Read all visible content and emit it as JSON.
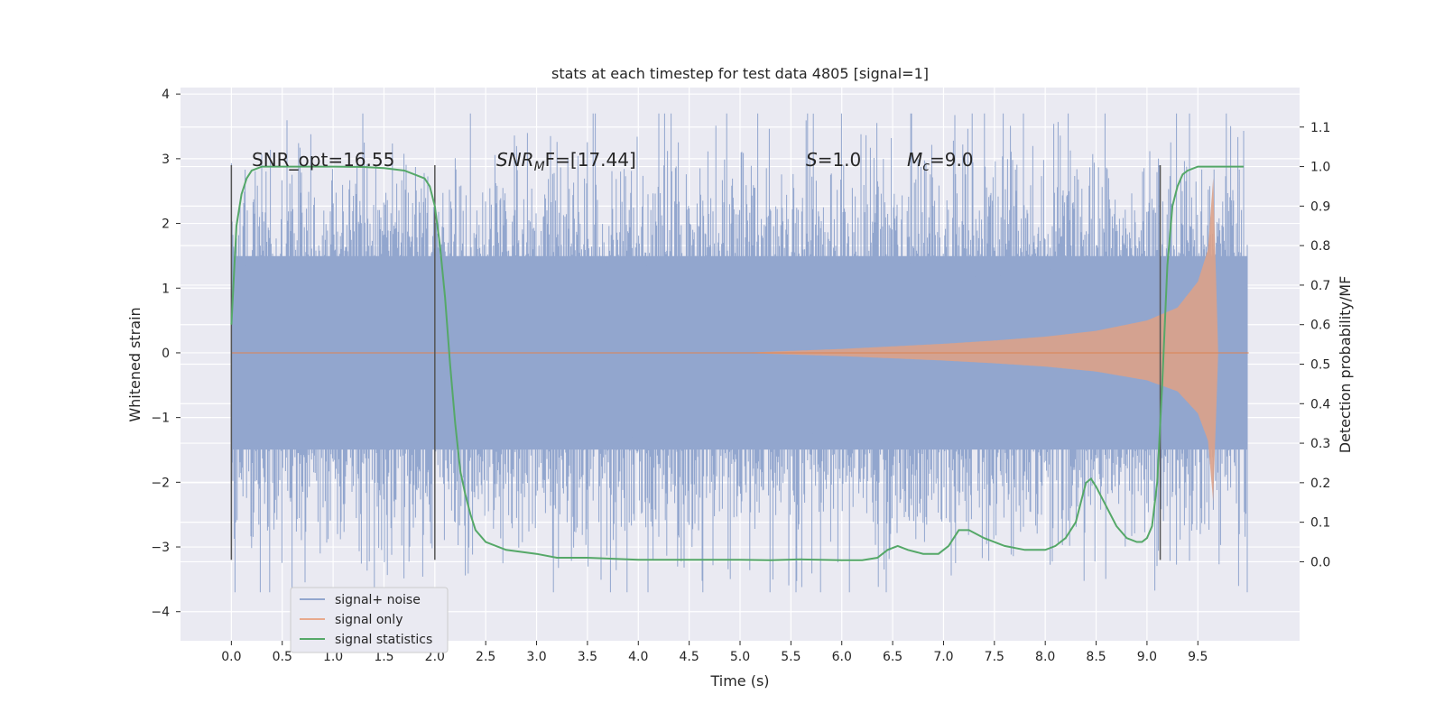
{
  "chart_data": {
    "type": "line",
    "title": "stats at each timestep for test data 4805 [signal=1]",
    "xlabel": "Time (s)",
    "ylabel_left": "Whitened strain",
    "ylabel_right": "Detection probability/MF",
    "xlim": [
      -0.5,
      10.5
    ],
    "ylim_left": [
      -4.45,
      4.1
    ],
    "ylim_right": [
      -0.2,
      1.2
    ],
    "x_ticks": [
      "0.0",
      "0.5",
      "1.0",
      "1.5",
      "2.0",
      "2.5",
      "3.0",
      "3.5",
      "4.0",
      "4.5",
      "5.0",
      "5.5",
      "6.0",
      "6.5",
      "7.0",
      "7.5",
      "8.0",
      "8.5",
      "9.0",
      "9.5"
    ],
    "y_ticks_left": [
      "4",
      "3",
      "2",
      "1",
      "0",
      "−1",
      "−2",
      "−3",
      "−4"
    ],
    "y_ticks_right": [
      "1.1",
      "1.0",
      "0.9",
      "0.8",
      "0.7",
      "0.6",
      "0.5",
      "0.4",
      "0.3",
      "0.2",
      "0.1",
      "0.0"
    ],
    "grid": true,
    "legend_position": "lower-left",
    "vertical_lines_x": [
      0.0,
      2.0,
      9.13
    ],
    "vertical_lines_range": [
      -3.2,
      2.9
    ],
    "annotations": {
      "snr_opt": "SNR_opt=16.55",
      "snr_mf_label": "SNR",
      "snr_mf_sub": "M",
      "snr_mf_rest": "F=[17.44]",
      "s_label": "S",
      "s_rest": "=1.0",
      "mc_label": "M",
      "mc_sub": "c",
      "mc_rest": "=9.0"
    },
    "series": [
      {
        "name": "signal+ noise",
        "color": "#92a6ce",
        "axis": "left",
        "description": "noise-dominated whitened strain, roughly within −2.5 to 2.5 with spikes to about ±3.7",
        "x_range": [
          0.0,
          9.99
        ],
        "envelope_typical": 2.3,
        "envelope_peak": 3.7
      },
      {
        "name": "signal only",
        "color": "#dd8452",
        "axis": "left",
        "description": "chirp growing in amplitude, peaking near t=9.65",
        "x": [
          0.0,
          5.0,
          5.5,
          6.0,
          6.5,
          7.0,
          7.5,
          8.0,
          8.5,
          9.0,
          9.3,
          9.5,
          9.6,
          9.65,
          9.7,
          10.0
        ],
        "amplitude": [
          0.0,
          0.0,
          0.03,
          0.06,
          0.1,
          0.14,
          0.19,
          0.25,
          0.34,
          0.5,
          0.7,
          1.1,
          1.6,
          2.7,
          0.0,
          0.0
        ]
      },
      {
        "name": "signal statistics",
        "color": "#55a868",
        "axis": "right",
        "x": [
          0.0,
          0.05,
          0.1,
          0.15,
          0.2,
          0.3,
          0.5,
          0.8,
          1.0,
          1.3,
          1.5,
          1.6,
          1.7,
          1.8,
          1.9,
          1.95,
          2.0,
          2.05,
          2.1,
          2.15,
          2.2,
          2.25,
          2.3,
          2.35,
          2.4,
          2.5,
          2.7,
          3.0,
          3.2,
          3.5,
          4.0,
          4.5,
          5.0,
          5.3,
          5.6,
          6.0,
          6.2,
          6.35,
          6.45,
          6.55,
          6.65,
          6.8,
          6.95,
          7.05,
          7.15,
          7.25,
          7.4,
          7.6,
          7.8,
          8.0,
          8.1,
          8.2,
          8.3,
          8.35,
          8.4,
          8.45,
          8.5,
          8.6,
          8.7,
          8.8,
          8.9,
          8.95,
          9.0,
          9.05,
          9.1,
          9.15,
          9.2,
          9.25,
          9.3,
          9.35,
          9.4,
          9.5,
          9.7,
          9.95
        ],
        "values": [
          0.6,
          0.85,
          0.93,
          0.97,
          0.99,
          1.0,
          1.0,
          1.0,
          1.0,
          0.999,
          0.996,
          0.993,
          0.99,
          0.98,
          0.97,
          0.95,
          0.9,
          0.8,
          0.67,
          0.5,
          0.35,
          0.23,
          0.17,
          0.12,
          0.08,
          0.05,
          0.03,
          0.02,
          0.01,
          0.01,
          0.005,
          0.005,
          0.005,
          0.004,
          0.006,
          0.004,
          0.004,
          0.01,
          0.03,
          0.04,
          0.03,
          0.02,
          0.02,
          0.04,
          0.08,
          0.08,
          0.06,
          0.04,
          0.03,
          0.03,
          0.04,
          0.06,
          0.1,
          0.15,
          0.2,
          0.21,
          0.19,
          0.14,
          0.09,
          0.06,
          0.05,
          0.05,
          0.06,
          0.09,
          0.2,
          0.45,
          0.75,
          0.9,
          0.95,
          0.98,
          0.99,
          1.0,
          1.0,
          1.0
        ]
      }
    ]
  }
}
